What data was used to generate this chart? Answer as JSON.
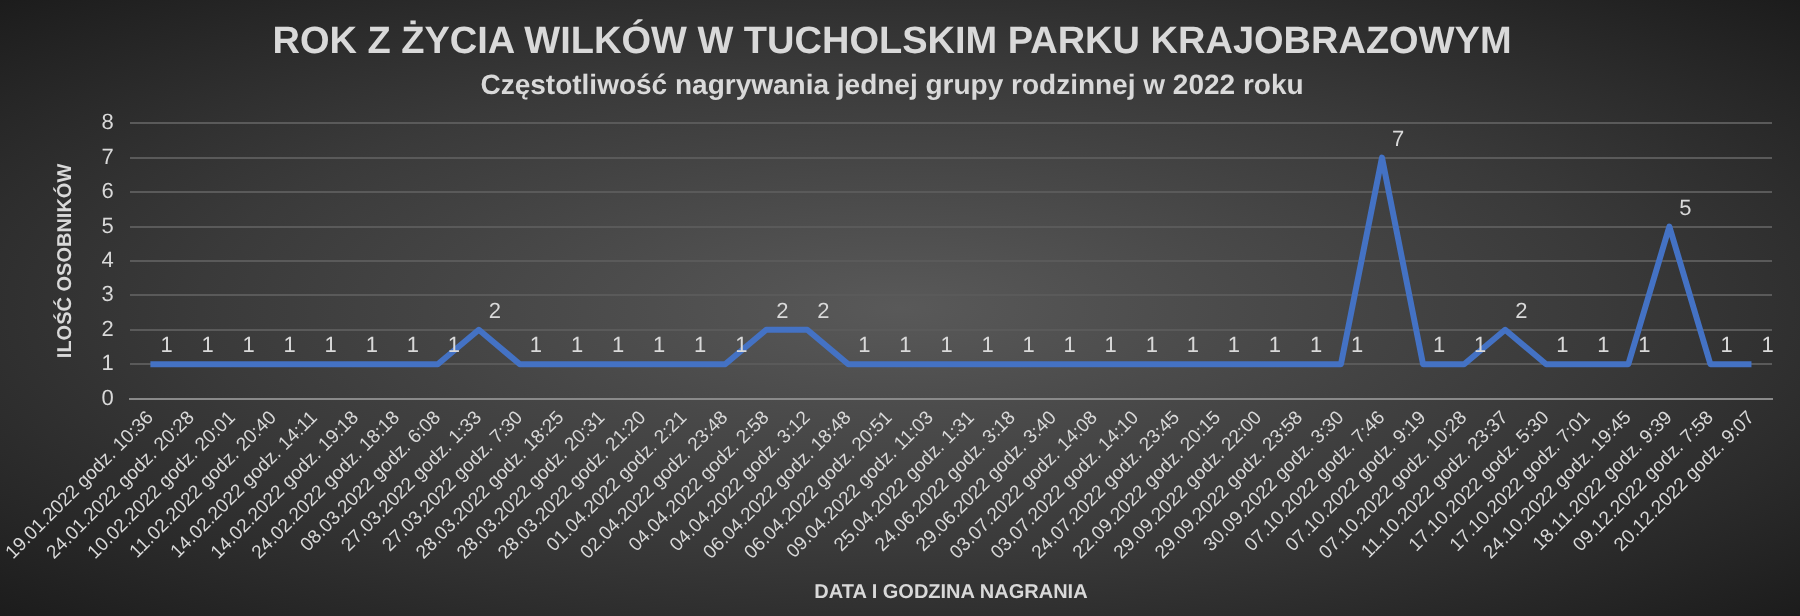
{
  "chart_data": {
    "type": "line",
    "title": "ROK Z ŻYCIA WILKÓW W TUCHOLSKIM PARKU KRAJOBRAZOWYM",
    "subtitle": "Częstotliwość nagrywania jednej grupy rodzinnej w 2022 roku",
    "xlabel": "DATA I GODZINA NAGRANIA",
    "ylabel": "ILOŚĆ OSOBNIKÓW",
    "categories": [
      "19.01.2022 godz. 10:36",
      "24.01.2022 godz. 20:28",
      "10.02.2022 godz. 20:01",
      "11.02.2022 godz. 20:40",
      "14.02.2022 godz. 14:11",
      "14.02.2022 godz. 19:18",
      "24.02.2022 godz. 18:18",
      "08.03.2022 godz. 6:08",
      "27.03.2022 godz. 1:33",
      "27.03.2022 godz. 7:30",
      "28.03.2022 godz. 18:25",
      "28.03.2022 godz. 20:31",
      "28.03.2022 godz. 21:20",
      "01.04.2022 godz. 2:21",
      "02.04.2022 godz. 23:48",
      "04.04.2022 godz. 2:58",
      "04.04.2022 godz. 3:12",
      "06.04.2022 godz. 18:48",
      "06.04.2022 godz. 20:51",
      "09.04.2022 godz. 11:03",
      "25.04.2022 godz. 1:31",
      "24.06.2022 godz. 3:18",
      "29.06.2022 godz. 3:40",
      "03.07.2022 godz. 14:08",
      "03.07.2022 godz. 14:10",
      "24.07.2022 godz. 23:45",
      "22.09.2022 godz. 20:15",
      "29.09.2022 godz. 22:00",
      "29.09.2022 godz. 23:58",
      "30.09.2022 godz. 3:30",
      "07.10.2022 godz. 7:46",
      "07.10.2022 godz. 9:19",
      "07.10.2022 godz. 10:28",
      "11.10.2022 godz. 23:37",
      "17.10.2022 godz. 5:30",
      "17.10.2022 godz. 7:01",
      "24.10.2022 godz. 19:45",
      "18.11.2022 godz. 9:39",
      "09.12.2022 godz. 7:58",
      "20.12.2022 godz. 9:07"
    ],
    "series": [
      {
        "color": "#4472c4",
        "values": [
          1,
          1,
          1,
          1,
          1,
          1,
          1,
          1,
          2,
          1,
          1,
          1,
          1,
          1,
          1,
          2,
          2,
          1,
          1,
          1,
          1,
          1,
          1,
          1,
          1,
          1,
          1,
          1,
          1,
          1,
          7,
          1,
          1,
          2,
          1,
          1,
          1,
          5,
          1,
          1
        ]
      }
    ],
    "ylim": [
      0,
      8
    ],
    "yticks": [
      0,
      1,
      2,
      3,
      4,
      5,
      6,
      7,
      8
    ],
    "grid": "y",
    "legend": false,
    "marker": "none",
    "line_style": "solid",
    "data_labels": true
  }
}
